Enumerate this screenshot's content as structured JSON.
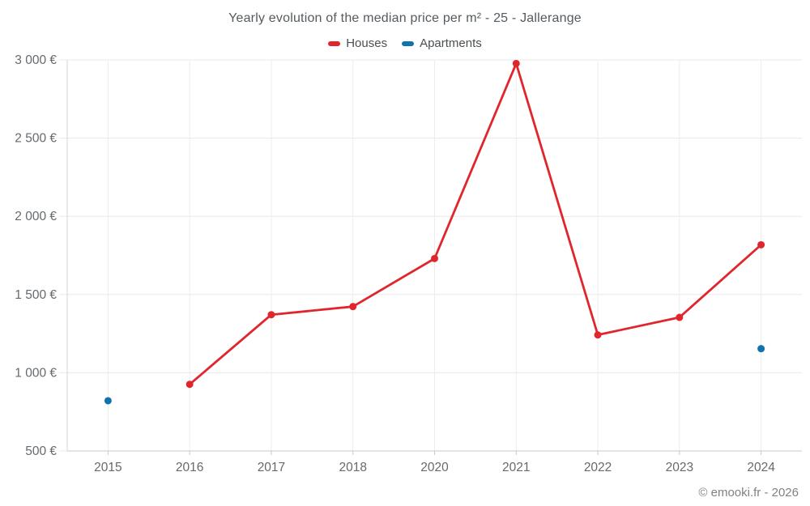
{
  "title": "Yearly evolution of the median price per m² - 25 - Jallerange",
  "attribution": "© emooki.fr - 2026",
  "chart_data": {
    "type": "line",
    "categories": [
      "2015",
      "2016",
      "2017",
      "2018",
      "2020",
      "2021",
      "2022",
      "2023",
      "2024"
    ],
    "series": [
      {
        "name": "Houses",
        "color": "#e0262c",
        "marker": "circle",
        "values": [
          null,
          926,
          1371,
          1423,
          1730,
          2977,
          1242,
          1354,
          1818
        ]
      },
      {
        "name": "Apartments",
        "color": "#1173ab",
        "marker": "circle",
        "values": [
          821,
          null,
          null,
          null,
          null,
          null,
          null,
          null,
          1154
        ]
      }
    ],
    "title": "Yearly evolution of the median price per m² - 25 - Jallerange",
    "xlabel": "",
    "ylabel": "",
    "ylim": [
      500,
      3000
    ],
    "yticks": [
      500,
      1000,
      1500,
      2000,
      2500,
      3000
    ],
    "ytick_labels": [
      "500 €",
      "1 000 €",
      "1 500 €",
      "2 000 €",
      "2 500 €",
      "3 000 €"
    ],
    "grid": true,
    "legend_position": "top",
    "currency": "€"
  }
}
